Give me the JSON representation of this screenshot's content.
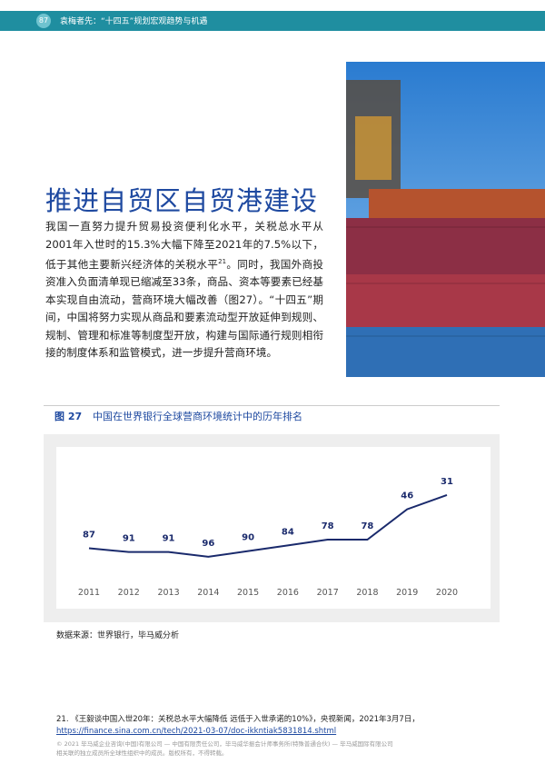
{
  "header": {
    "page_number": "87",
    "title": "袁梅者先：“十四五”规划宏观趋势与机遇"
  },
  "section": {
    "title": "推进自贸区自贸港建设",
    "body_before": "我国一直努力提升贸易投资便利化水平，关税总水平从2001年入世时的15.3%大幅下降至2021年的7.5%以下，低于其他主要新兴经济体的关税水平",
    "footnote_ref": "21",
    "body_after": "。同时，我国外商投资准入负面清单现已缩减至33条，商品、资本等要素已经基本实现自由流动，营商环境大幅改善（图27）。“十四五”期间，中国将努力实现从商品和要素流动型开放延伸到规则、规制、管理和标准等制度型开放，构建与国际通行规则相衔接的制度体系和监管模式，进一步提升营商环境。"
  },
  "figure": {
    "label": "图 27",
    "source": "数据来源：世界银行，毕马威分析"
  },
  "chart_data": {
    "type": "line",
    "title": "中国在世界银行全球营商环境统计中的历年排名",
    "categories": [
      "2011",
      "2012",
      "2013",
      "2014",
      "2015",
      "2016",
      "2017",
      "2018",
      "2019",
      "2020"
    ],
    "values": [
      87,
      91,
      91,
      96,
      90,
      84,
      78,
      78,
      46,
      31
    ],
    "color": "#1a2a6c",
    "ylim": [
      120,
      -10
    ]
  },
  "footnote": {
    "text": "21. 《王毅谈中国入世20年：关税总水平大幅降低 远低于入世承诺的10%》，央视新闻，2021年3月7日，",
    "link": "https://finance.sina.com.cn/tech/2021-03-07/doc-ikkntiak5831814.shtml"
  },
  "copyright": {
    "line1": "© 2021 毕马威企业咨询(中国)有限公司 — 中国有限责任公司，毕马威华振会计师事务所(特殊普通合伙) — 毕马威国际有限公司",
    "line2": "相关联的独立成员所全球性组织中的成员。版权所有，不得转载。"
  }
}
